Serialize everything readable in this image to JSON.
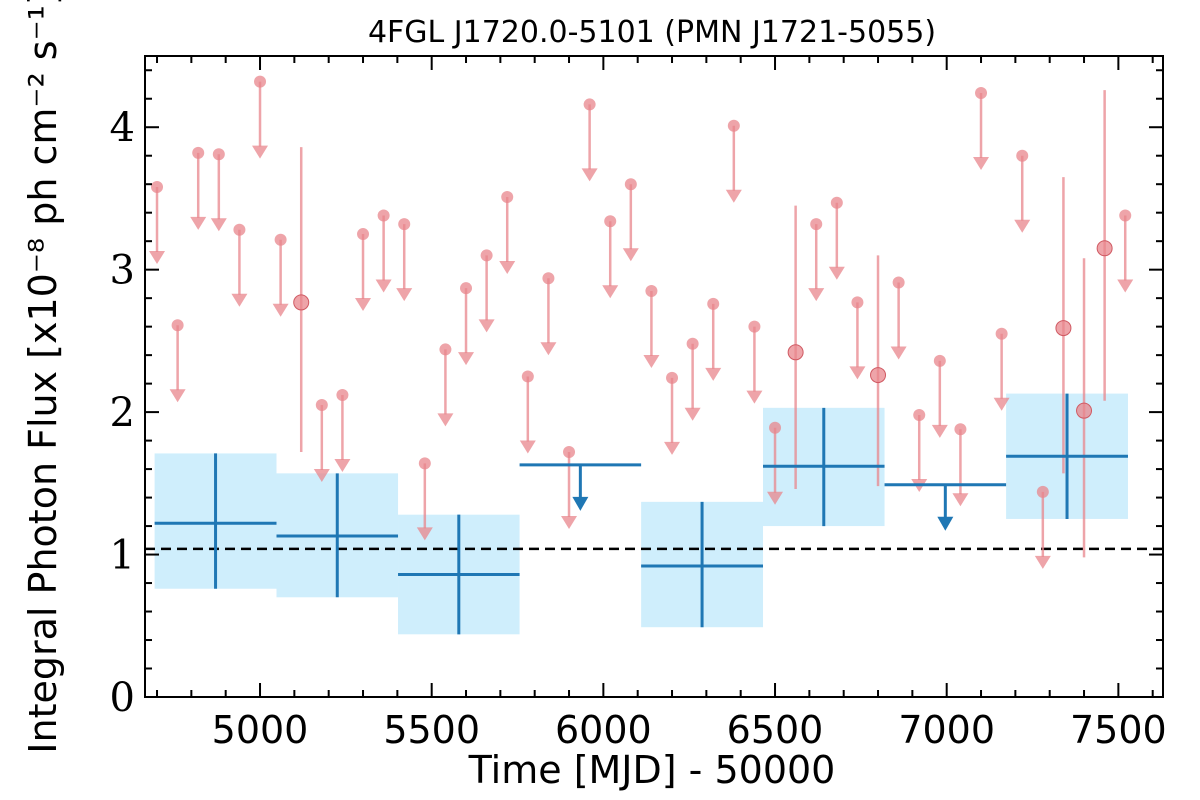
{
  "chart_data": {
    "type": "scatter",
    "title": "4FGL J1720.0-5101 (PMN J1721-5055)",
    "xlabel": "Time [MJD] - 50000",
    "ylabel": "Integral Photon Flux [x10⁻⁸ ph cm⁻² s⁻¹]",
    "xlim": [
      4665,
      7630
    ],
    "ylim": [
      0,
      4.5
    ],
    "x_ticks": [
      5000,
      5500,
      6000,
      6500,
      7000,
      7500
    ],
    "x_tick_labels": [
      "5000",
      "5500",
      "6000",
      "6500",
      "7000",
      "7500"
    ],
    "y_ticks": [
      0,
      1,
      2,
      3,
      4
    ],
    "y_tick_labels": [
      "0",
      "1",
      "2",
      "3",
      "4"
    ],
    "reference_line": 1.04,
    "colors": {
      "short_bins": "#e8868c",
      "long_bins": "#1f77b4",
      "long_bins_fill": "#cfeefc",
      "reference_line": "#000000"
    },
    "series": [
      {
        "bin": "short",
        "upper_limits": [
          [
            4700,
            3.58
          ],
          [
            4760,
            2.61
          ],
          [
            4820,
            3.82
          ],
          [
            4880,
            3.81
          ],
          [
            4940,
            3.28
          ],
          [
            5000,
            4.32
          ],
          [
            5060,
            3.21
          ],
          [
            5180,
            2.05
          ],
          [
            5240,
            2.12
          ],
          [
            5300,
            3.25
          ],
          [
            5360,
            3.38
          ],
          [
            5420,
            3.32
          ],
          [
            5480,
            1.64
          ],
          [
            5540,
            2.44
          ],
          [
            5600,
            2.87
          ],
          [
            5660,
            3.1
          ],
          [
            5720,
            3.51
          ],
          [
            5780,
            2.25
          ],
          [
            5840,
            2.94
          ],
          [
            5900,
            1.72
          ],
          [
            5960,
            4.16
          ],
          [
            6020,
            3.34
          ],
          [
            6080,
            3.6
          ],
          [
            6140,
            2.85
          ],
          [
            6200,
            2.24
          ],
          [
            6260,
            2.48
          ],
          [
            6320,
            2.76
          ],
          [
            6380,
            4.01
          ],
          [
            6440,
            2.6
          ],
          [
            6500,
            1.89
          ],
          [
            6620,
            3.32
          ],
          [
            6680,
            3.47
          ],
          [
            6740,
            2.77
          ],
          [
            6860,
            2.91
          ],
          [
            6920,
            1.98
          ],
          [
            6980,
            2.36
          ],
          [
            7040,
            1.88
          ],
          [
            7100,
            4.24
          ],
          [
            7160,
            2.55
          ],
          [
            7220,
            3.8
          ],
          [
            7280,
            1.44
          ],
          [
            7520,
            3.38
          ]
        ],
        "detections": [
          [
            5120,
            2.77,
            1.72,
            3.86
          ],
          [
            6560,
            2.42,
            1.46,
            3.45
          ],
          [
            6800,
            2.26,
            1.48,
            3.1
          ],
          [
            7340,
            2.59,
            1.57,
            3.65
          ],
          [
            7400,
            2.01,
            0.98,
            3.08
          ],
          [
            7460,
            3.15,
            2.08,
            4.26
          ]
        ]
      },
      {
        "bin": "long",
        "detections": [
          [
            4693,
            5048,
            1.22,
            0.76,
            1.71
          ],
          [
            5048,
            5402,
            1.13,
            0.7,
            1.57
          ],
          [
            5402,
            5756,
            0.86,
            0.44,
            1.28
          ],
          [
            6110,
            6465,
            0.92,
            0.49,
            1.37
          ],
          [
            6465,
            6819,
            1.62,
            1.2,
            2.03
          ],
          [
            7173,
            7528,
            1.69,
            1.25,
            2.13
          ]
        ],
        "upper_limits": [
          [
            5756,
            6110,
            1.63
          ],
          [
            6819,
            7173,
            1.49
          ]
        ]
      }
    ]
  }
}
